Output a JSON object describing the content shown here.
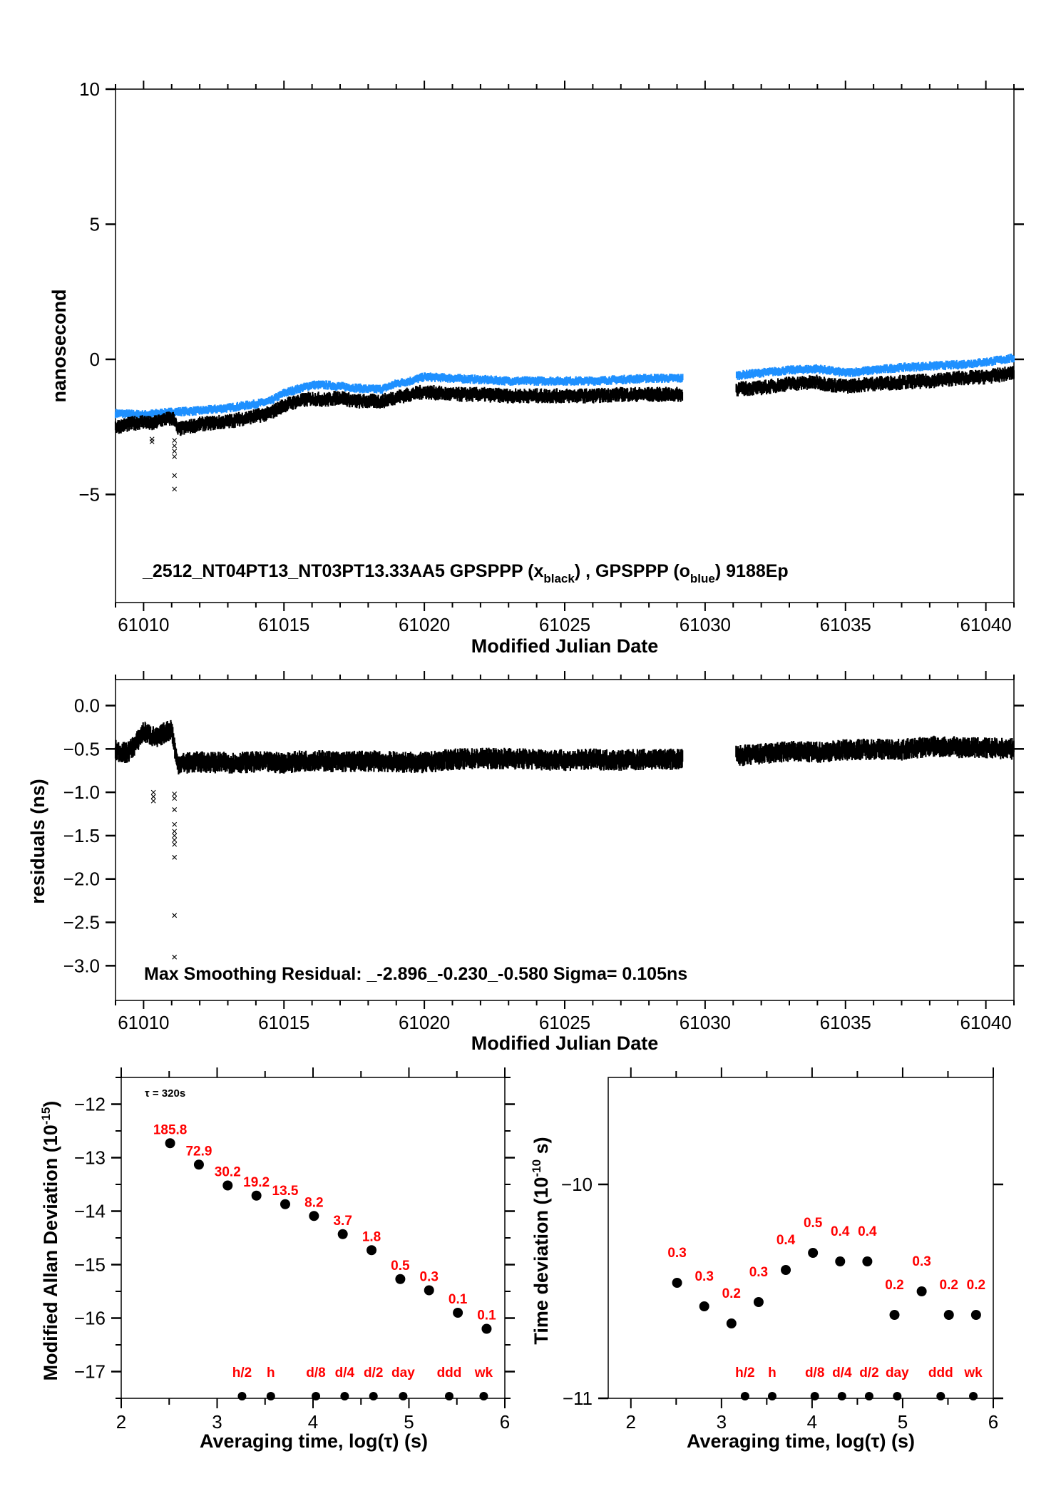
{
  "chart_data": [
    {
      "id": "phase",
      "type": "scatter",
      "title": "",
      "annotation": {
        "main": "_2512_NT04PT13_NT03PT13.33AA5    GPSPPP (x",
        "sub1": "black",
        "mid": ") ,  GPSPPP (o",
        "sub2": "blue",
        "end": ")  9188Ep"
      },
      "xlabel": "Modified Julian Date",
      "ylabel": "nanosecond",
      "xlim": [
        61009,
        61041
      ],
      "ylim": [
        -9,
        10
      ],
      "xticks": [
        61010,
        61015,
        61020,
        61025,
        61030,
        61035,
        61040
      ],
      "yticks": [
        -5,
        0,
        5,
        10
      ],
      "ytick_labels": [
        "−5",
        "0",
        "5",
        "10"
      ],
      "gap": [
        61029.2,
        61031.1
      ],
      "series": [
        {
          "name": "GPSPPP (x black)",
          "color": "#000000",
          "marker": "x",
          "points": [
            [
              61009.0,
              -2.5
            ],
            [
              61009.5,
              -2.4
            ],
            [
              61010.0,
              -2.3
            ],
            [
              61010.3,
              -2.4
            ],
            [
              61010.5,
              -2.3
            ],
            [
              61010.8,
              -2.2
            ],
            [
              61011.1,
              -2.2
            ],
            [
              61011.2,
              -2.6
            ],
            [
              61011.6,
              -2.5
            ],
            [
              61012.0,
              -2.4
            ],
            [
              61013.0,
              -2.3
            ],
            [
              61014.0,
              -2.1
            ],
            [
              61014.5,
              -2.0
            ],
            [
              61015.0,
              -1.7
            ],
            [
              61015.5,
              -1.55
            ],
            [
              61016.0,
              -1.45
            ],
            [
              61016.5,
              -1.5
            ],
            [
              61017.0,
              -1.4
            ],
            [
              61017.5,
              -1.55
            ],
            [
              61018.0,
              -1.55
            ],
            [
              61018.5,
              -1.55
            ],
            [
              61019.0,
              -1.4
            ],
            [
              61019.5,
              -1.3
            ],
            [
              61020.0,
              -1.2
            ],
            [
              61021.0,
              -1.3
            ],
            [
              61022.0,
              -1.3
            ],
            [
              61023.0,
              -1.35
            ],
            [
              61024.0,
              -1.35
            ],
            [
              61025.0,
              -1.35
            ],
            [
              61026.0,
              -1.35
            ],
            [
              61027.0,
              -1.3
            ],
            [
              61028.0,
              -1.3
            ],
            [
              61029.2,
              -1.3
            ],
            [
              61031.1,
              -1.1
            ],
            [
              61032.0,
              -1.05
            ],
            [
              61033.0,
              -0.9
            ],
            [
              61034.0,
              -0.85
            ],
            [
              61034.5,
              -0.95
            ],
            [
              61035.0,
              -1.0
            ],
            [
              61036.0,
              -0.9
            ],
            [
              61037.0,
              -0.85
            ],
            [
              61038.0,
              -0.8
            ],
            [
              61039.0,
              -0.7
            ],
            [
              61040.0,
              -0.65
            ],
            [
              61041.0,
              -0.5
            ]
          ],
          "outliers": [
            [
              61010.3,
              -2.95
            ],
            [
              61010.3,
              -3.05
            ],
            [
              61011.1,
              -3.0
            ],
            [
              61011.1,
              -3.2
            ],
            [
              61011.1,
              -3.4
            ],
            [
              61011.1,
              -3.6
            ],
            [
              61011.1,
              -4.3
            ],
            [
              61011.1,
              -4.8
            ]
          ]
        },
        {
          "name": "GPSPPP (o blue)",
          "color": "#1e90ff",
          "marker": "o",
          "points": [
            [
              61009.0,
              -2.0
            ],
            [
              61010.0,
              -2.05
            ],
            [
              61011.0,
              -1.95
            ],
            [
              61012.0,
              -1.9
            ],
            [
              61013.0,
              -1.8
            ],
            [
              61014.0,
              -1.65
            ],
            [
              61014.5,
              -1.55
            ],
            [
              61015.0,
              -1.25
            ],
            [
              61015.5,
              -1.1
            ],
            [
              61016.0,
              -0.95
            ],
            [
              61016.5,
              -0.95
            ],
            [
              61017.0,
              -1.0
            ],
            [
              61017.5,
              -1.05
            ],
            [
              61018.0,
              -1.1
            ],
            [
              61018.5,
              -1.1
            ],
            [
              61019.0,
              -0.9
            ],
            [
              61019.5,
              -0.8
            ],
            [
              61020.0,
              -0.65
            ],
            [
              61021.0,
              -0.7
            ],
            [
              61022.0,
              -0.75
            ],
            [
              61023.0,
              -0.8
            ],
            [
              61024.0,
              -0.8
            ],
            [
              61025.0,
              -0.8
            ],
            [
              61026.0,
              -0.8
            ],
            [
              61027.0,
              -0.75
            ],
            [
              61028.0,
              -0.7
            ],
            [
              61029.2,
              -0.7
            ],
            [
              61031.1,
              -0.6
            ],
            [
              61032.0,
              -0.5
            ],
            [
              61033.0,
              -0.4
            ],
            [
              61034.0,
              -0.35
            ],
            [
              61035.0,
              -0.5
            ],
            [
              61036.0,
              -0.4
            ],
            [
              61037.0,
              -0.3
            ],
            [
              61038.0,
              -0.25
            ],
            [
              61039.0,
              -0.2
            ],
            [
              61040.0,
              -0.1
            ],
            [
              61041.0,
              0.05
            ]
          ]
        }
      ]
    },
    {
      "id": "residuals",
      "type": "scatter",
      "annotation": "Max Smoothing Residual: _-2.896_-0.230_-0.580  Sigma= 0.105ns",
      "xlabel": "Modified Julian Date",
      "ylabel": "residuals (ns)",
      "xlim": [
        61009,
        61041
      ],
      "ylim": [
        -3.4,
        0.3
      ],
      "xticks": [
        61010,
        61015,
        61020,
        61025,
        61030,
        61035,
        61040
      ],
      "yticks": [
        0.0,
        -0.5,
        -1.0,
        -1.5,
        -2.0,
        -2.5,
        -3.0
      ],
      "ytick_labels": [
        "0.0",
        "−0.5",
        "−1.0",
        "−1.5",
        "−2.0",
        "−2.5",
        "−3.0"
      ],
      "series": [
        {
          "name": "residuals",
          "color": "#000000",
          "marker": "x",
          "points": [
            [
              61009.0,
              -0.52
            ],
            [
              61009.4,
              -0.55
            ],
            [
              61009.7,
              -0.45
            ],
            [
              61010.0,
              -0.3
            ],
            [
              61010.3,
              -0.35
            ],
            [
              61010.5,
              -0.38
            ],
            [
              61010.7,
              -0.32
            ],
            [
              61011.0,
              -0.27
            ],
            [
              61011.2,
              -0.67
            ],
            [
              61012.0,
              -0.65
            ],
            [
              61013.0,
              -0.66
            ],
            [
              61014.0,
              -0.65
            ],
            [
              61015.0,
              -0.66
            ],
            [
              61016.0,
              -0.63
            ],
            [
              61017.0,
              -0.65
            ],
            [
              61018.0,
              -0.64
            ],
            [
              61019.0,
              -0.65
            ],
            [
              61020.0,
              -0.66
            ],
            [
              61021.0,
              -0.62
            ],
            [
              61022.0,
              -0.61
            ],
            [
              61023.0,
              -0.61
            ],
            [
              61024.0,
              -0.62
            ],
            [
              61025.0,
              -0.63
            ],
            [
              61026.0,
              -0.62
            ],
            [
              61027.0,
              -0.63
            ],
            [
              61028.0,
              -0.62
            ],
            [
              61029.2,
              -0.62
            ],
            [
              61031.1,
              -0.58
            ],
            [
              61032.0,
              -0.56
            ],
            [
              61033.0,
              -0.53
            ],
            [
              61034.0,
              -0.54
            ],
            [
              61035.0,
              -0.51
            ],
            [
              61036.0,
              -0.5
            ],
            [
              61037.0,
              -0.51
            ],
            [
              61038.0,
              -0.47
            ],
            [
              61039.0,
              -0.48
            ],
            [
              61040.0,
              -0.49
            ],
            [
              61041.0,
              -0.5
            ]
          ],
          "outliers": [
            [
              61010.35,
              -1.0
            ],
            [
              61010.35,
              -1.05
            ],
            [
              61010.35,
              -1.1
            ],
            [
              61011.1,
              -1.02
            ],
            [
              61011.1,
              -1.07
            ],
            [
              61011.1,
              -1.2
            ],
            [
              61011.1,
              -1.37
            ],
            [
              61011.1,
              -1.45
            ],
            [
              61011.1,
              -1.5
            ],
            [
              61011.1,
              -1.55
            ],
            [
              61011.1,
              -1.6
            ],
            [
              61011.1,
              -1.75
            ],
            [
              61011.1,
              -2.42
            ],
            [
              61011.1,
              -2.9
            ]
          ]
        }
      ]
    },
    {
      "id": "mdev",
      "type": "scatter",
      "annotation": "τ = 320s",
      "xlabel": "Averaging time, log(τ) (s)",
      "ylabel": "Modified Allan Deviation (10",
      "ylabel_sup": "-15",
      "ylabel_end": ")",
      "xlim": [
        2,
        6
      ],
      "ylim": [
        -17.5,
        -11.5
      ],
      "xticks": [
        2,
        3,
        4,
        5,
        6
      ],
      "yticks": [
        -12,
        -13,
        -14,
        -15,
        -16,
        -17
      ],
      "ytick_labels": [
        "−12",
        "−13",
        "−14",
        "−15",
        "−16",
        "−17"
      ],
      "x": [
        2.51,
        2.81,
        3.11,
        3.41,
        3.71,
        4.01,
        4.31,
        4.61,
        4.91,
        5.21,
        5.51,
        5.81
      ],
      "values": [
        -12.73,
        -13.13,
        -13.52,
        -13.71,
        -13.87,
        -14.09,
        -14.43,
        -14.73,
        -15.27,
        -15.48,
        -15.9,
        -16.2
      ],
      "value_labels": [
        "185.8",
        "72.9",
        "30.2",
        "19.2",
        "13.5",
        "8.2",
        "3.7",
        "1.8",
        "0.5",
        "0.3",
        "0.1",
        "0.1"
      ],
      "markers": {
        "x": [
          3.26,
          3.56,
          4.03,
          4.33,
          4.63,
          4.94,
          5.42,
          5.78
        ],
        "labels": [
          "h/2",
          "h",
          "d/8",
          "d/4",
          "d/2",
          "day",
          "ddd",
          "wk"
        ]
      }
    },
    {
      "id": "tdev",
      "type": "scatter",
      "xlabel": "Averaging time, log(τ) (s)",
      "ylabel": "Time deviation (10",
      "ylabel_sup": "-10",
      "ylabel_end": " s)",
      "xlim": [
        1.75,
        6
      ],
      "ylim": [
        -11,
        -9.5
      ],
      "xticks": [
        2,
        3,
        4,
        5,
        6
      ],
      "yticks": [
        -10,
        -11
      ],
      "ytick_labels": [
        "−10",
        "−11"
      ],
      "x": [
        2.51,
        2.81,
        3.11,
        3.41,
        3.71,
        4.01,
        4.31,
        4.61,
        4.91,
        5.21,
        5.51,
        5.81
      ],
      "values": [
        -10.46,
        -10.57,
        -10.65,
        -10.55,
        -10.4,
        -10.32,
        -10.36,
        -10.36,
        -10.61,
        -10.5,
        -10.61,
        -10.61
      ],
      "value_labels": [
        "0.3",
        "0.3",
        "0.2",
        "0.3",
        "0.4",
        "0.5",
        "0.4",
        "0.4",
        "0.2",
        "0.3",
        "0.2",
        "0.2"
      ],
      "markers": {
        "x": [
          3.26,
          3.56,
          4.03,
          4.33,
          4.63,
          4.94,
          5.42,
          5.78
        ],
        "labels": [
          "h/2",
          "h",
          "d/8",
          "d/4",
          "d/2",
          "day",
          "ddd",
          "wk"
        ]
      }
    }
  ]
}
